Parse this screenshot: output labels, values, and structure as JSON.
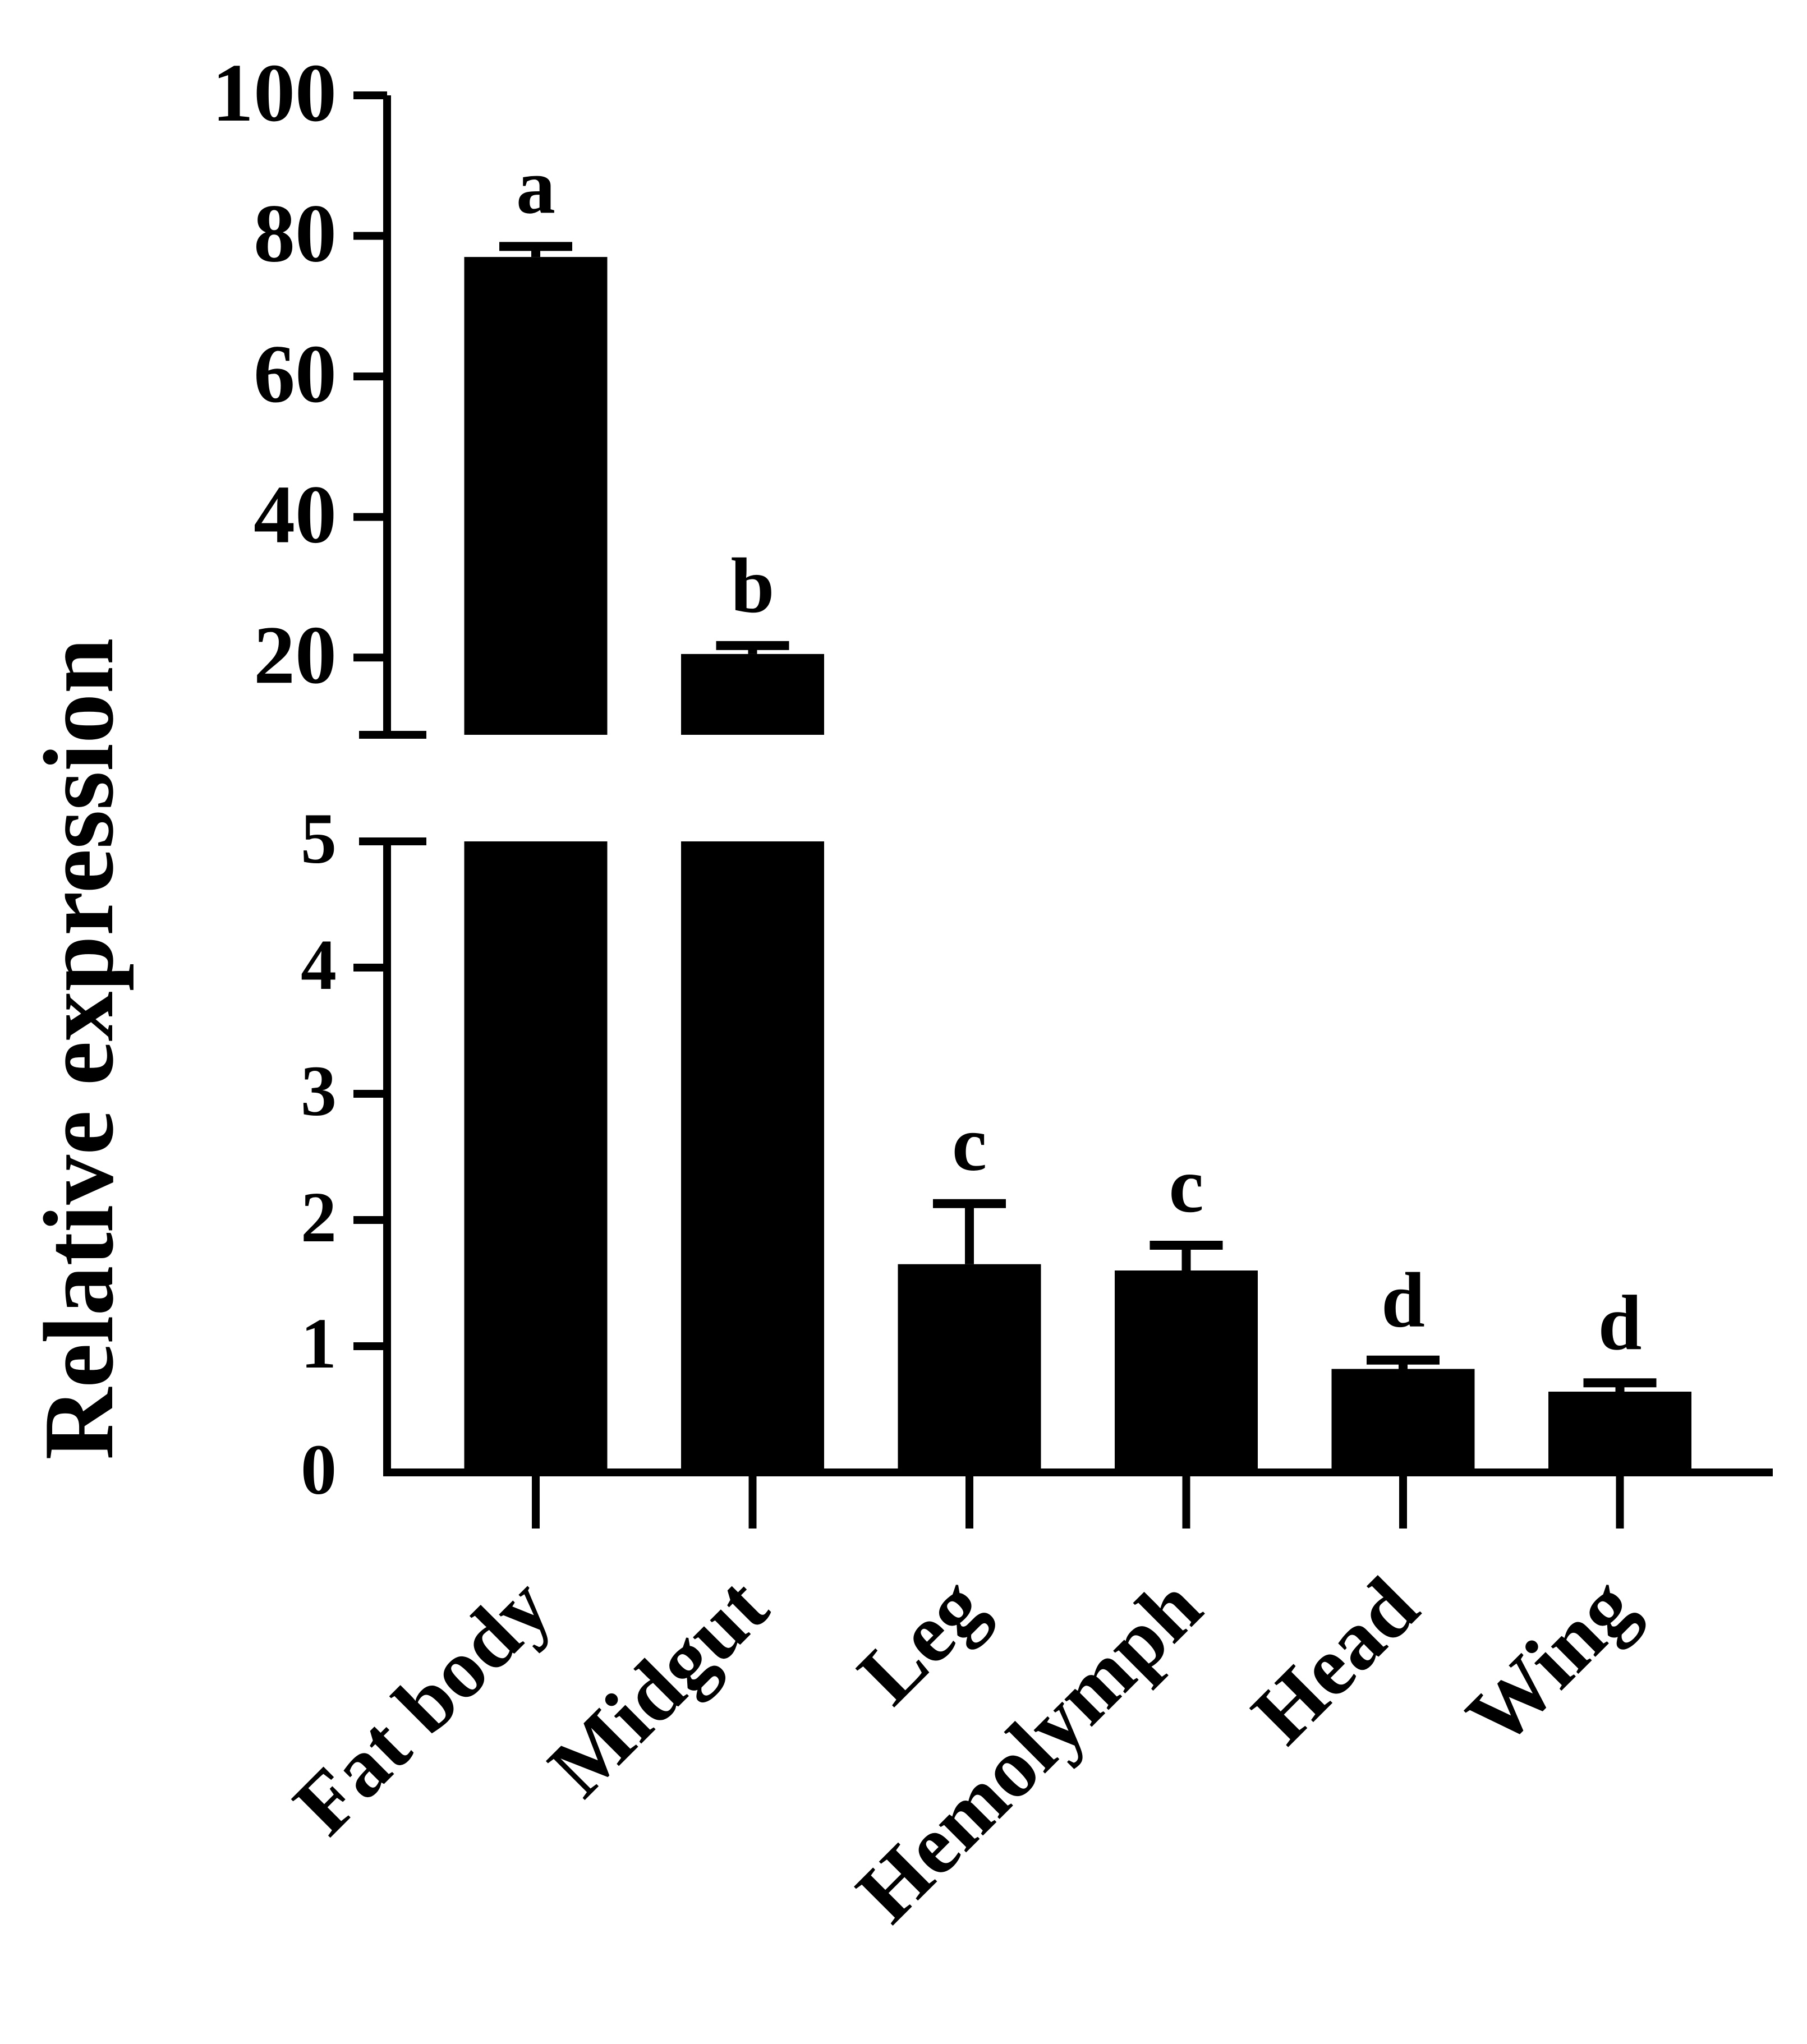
{
  "chart_data": {
    "type": "bar",
    "categories": [
      "Fat body",
      "Midgut",
      "Leg",
      "Hemolymph",
      "Head",
      "Wing"
    ],
    "values": [
      77,
      20.5,
      1.65,
      1.6,
      0.82,
      0.64
    ],
    "errors": [
      1.5,
      1.2,
      0.48,
      0.2,
      0.07,
      0.07
    ],
    "significance": [
      "a",
      "b",
      "c",
      "c",
      "d",
      "d"
    ],
    "ylabel": "Relative expression",
    "xlabel": "",
    "title": "",
    "broken_axis": {
      "lower_range": [
        0,
        5
      ],
      "upper_range": [
        9,
        100
      ],
      "lower_ticks": [
        "0",
        "1",
        "2",
        "3",
        "4",
        "5"
      ],
      "upper_ticks": [
        "20",
        "40",
        "60",
        "80",
        "100"
      ]
    },
    "grid": false,
    "legend": "none",
    "bar_color": "#000000"
  }
}
